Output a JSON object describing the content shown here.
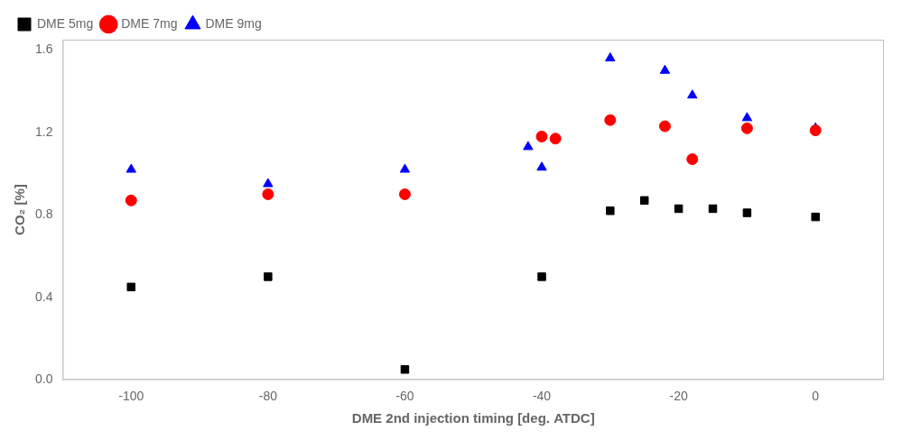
{
  "chart_data": {
    "type": "scatter",
    "xlabel": "DME 2nd injection timing [deg. ATDC]",
    "ylabel": "CO₂ [%]",
    "xlim": [
      -110,
      10
    ],
    "ylim": [
      0.0,
      1.65
    ],
    "xticks": [
      -100,
      -80,
      -60,
      -40,
      -20,
      0
    ],
    "yticks": [
      {
        "value": 0,
        "label": "0.0"
      },
      0.4,
      0.8,
      1.2,
      1.6
    ],
    "grid": false,
    "legend": "upper left",
    "series": [
      {
        "name": "DME 5mg",
        "color": "black",
        "marker": "square",
        "x": [
          -100,
          -80,
          -60,
          -40,
          -30,
          -25,
          -20,
          -15,
          -10,
          0
        ],
        "values": [
          0.45,
          0.5,
          0.05,
          0.5,
          0.82,
          0.87,
          0.83,
          0.83,
          0.81,
          0.79
        ]
      },
      {
        "name": "DME 7mg",
        "color": "red",
        "marker": "circle",
        "x": [
          -100,
          -80,
          -60,
          -40,
          -38,
          -30,
          -22,
          -18,
          -10,
          0
        ],
        "values": [
          0.87,
          0.9,
          0.9,
          1.18,
          1.17,
          1.26,
          1.23,
          1.07,
          1.22,
          1.21
        ]
      },
      {
        "name": "DME 9mg",
        "color": "blue",
        "marker": "triangle",
        "x": [
          -100,
          -80,
          -60,
          -42,
          -40,
          -30,
          -22,
          -18,
          -10,
          0
        ],
        "values": [
          1.02,
          0.95,
          1.02,
          1.13,
          1.03,
          1.56,
          1.5,
          1.38,
          1.27,
          1.22
        ]
      }
    ]
  }
}
